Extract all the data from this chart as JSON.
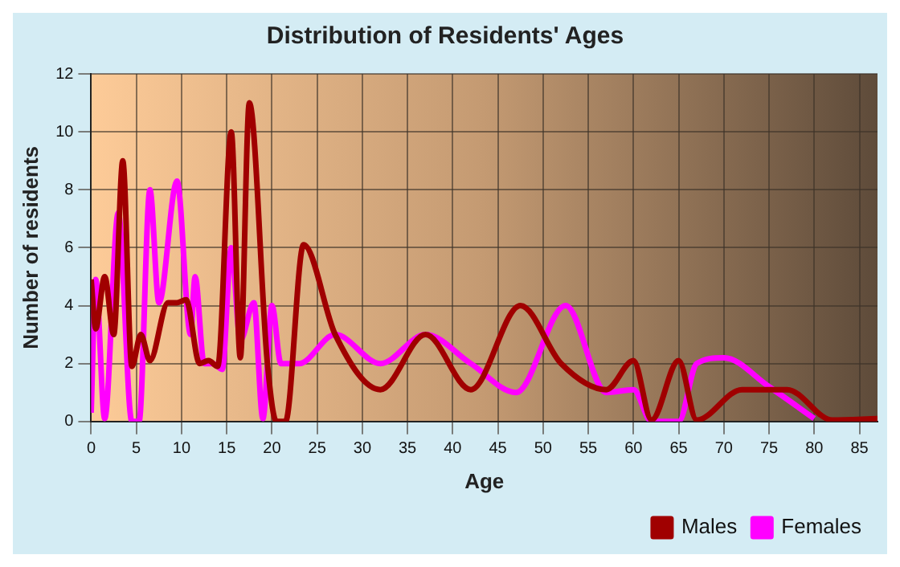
{
  "chart_data": {
    "type": "line",
    "title": "Distribution of Residents' Ages",
    "xlabel": "Age",
    "ylabel": "Number of residents",
    "xlim": [
      0,
      87
    ],
    "xticks": [
      0,
      5,
      10,
      15,
      20,
      25,
      30,
      35,
      40,
      45,
      50,
      55,
      60,
      65,
      70,
      75,
      80,
      85
    ],
    "ylim": [
      0,
      12
    ],
    "yticks": [
      0,
      2,
      4,
      6,
      8,
      10,
      12
    ],
    "grid": true,
    "legend": "bottom right",
    "series": [
      {
        "name": "Males",
        "color": "#a00000",
        "x": [
          0,
          0.5,
          1.5,
          2.5,
          3.5,
          4.5,
          5.5,
          6.5,
          8.5,
          9.5,
          10.5,
          12,
          13,
          14,
          15.5,
          16.5,
          17.5,
          19.5,
          20.5,
          21.5,
          23.5,
          27,
          32,
          37,
          42,
          47.5,
          52,
          57,
          60,
          62,
          65,
          67,
          72,
          77,
          82,
          87
        ],
        "values": [
          4.9,
          3.2,
          5,
          3,
          9,
          1.9,
          3,
          2.1,
          4.1,
          4.1,
          4.2,
          2,
          2.1,
          1.9,
          10,
          2.2,
          11,
          2,
          0,
          0,
          6.1,
          3,
          1.1,
          3,
          1.1,
          4,
          2,
          1.1,
          2.1,
          0.05,
          2.1,
          0.05,
          1.1,
          1.1,
          0.05,
          0.1
        ]
      },
      {
        "name": "Females",
        "color": "#ff00ff",
        "x": [
          0,
          0.5,
          1.5,
          3,
          4.5,
          5.3,
          6.5,
          7.5,
          9.5,
          11,
          11.5,
          12.5,
          13.5,
          14.5,
          15.5,
          16.5,
          18,
          19,
          20,
          21,
          23,
          27,
          32,
          37,
          42,
          47,
          52.5,
          57,
          60,
          62,
          65,
          67,
          70,
          75,
          80
        ],
        "values": [
          0.3,
          4.9,
          0.1,
          7.2,
          0,
          0,
          8,
          4.1,
          8.3,
          3,
          5,
          2,
          2,
          1.8,
          6,
          2.8,
          4.1,
          0.1,
          4,
          2,
          2,
          3,
          2,
          3,
          2,
          1,
          4,
          1,
          1.1,
          0,
          0,
          2,
          2.2,
          1.2,
          0.1
        ]
      }
    ]
  }
}
